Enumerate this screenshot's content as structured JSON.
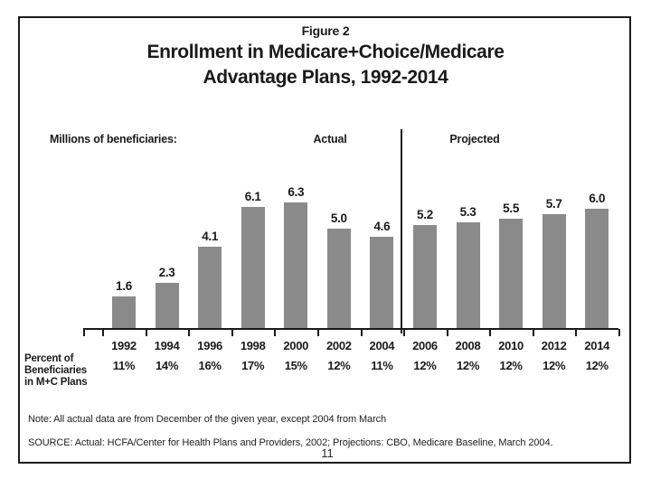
{
  "figure": {
    "kicker": "Figure 2",
    "title_line1": "Enrollment in Medicare+Choice/Medicare",
    "title_line2": "Advantage Plans, 1992-2014",
    "units_label": "Millions of beneficiaries:",
    "section_actual": "Actual",
    "section_projected": "Projected",
    "row_label_lines": [
      "Percent of",
      "Beneficiaries",
      "in M+C Plans"
    ],
    "note": "Note: All actual data are from December of the given year, except 2004 from March",
    "source": "SOURCE: Actual: HCFA/Center for Health Plans and Providers, 2002; Projections: CBO, Medicare Baseline, March 2004."
  },
  "page": {
    "page_number": "11"
  },
  "colors": {
    "bar": "#8a8a8a",
    "text": "#1a1a1a",
    "border": "#1a1a1a"
  },
  "chart_data": {
    "type": "bar",
    "title": "Enrollment in Medicare+Choice/Medicare Advantage Plans, 1992-2014",
    "ylabel": "Millions of beneficiaries",
    "xlabel": "",
    "ylim": [
      0,
      7
    ],
    "grid": false,
    "legend_position": "none",
    "categories": [
      "1992",
      "1994",
      "1996",
      "1998",
      "2000",
      "2002",
      "2004",
      "2006",
      "2008",
      "2010",
      "2012",
      "2014"
    ],
    "values": [
      1.6,
      2.3,
      4.1,
      6.1,
      6.3,
      5.0,
      4.6,
      5.2,
      5.3,
      5.5,
      5.7,
      6.0
    ],
    "value_labels": [
      "1.6",
      "2.3",
      "4.1",
      "6.1",
      "6.3",
      "5.0",
      "4.6",
      "5.2",
      "5.3",
      "5.5",
      "5.7",
      "6.0"
    ],
    "percent_row": [
      "11%",
      "14%",
      "16%",
      "17%",
      "15%",
      "12%",
      "11%",
      "12%",
      "12%",
      "12%",
      "12%",
      "12%"
    ],
    "percent_row_label": "Percent of Beneficiaries in M+C Plans",
    "sections": [
      {
        "label": "Actual",
        "from": "1992",
        "to": "2004"
      },
      {
        "label": "Projected",
        "from": "2006",
        "to": "2014"
      }
    ],
    "bar_color": "#8a8a8a"
  }
}
